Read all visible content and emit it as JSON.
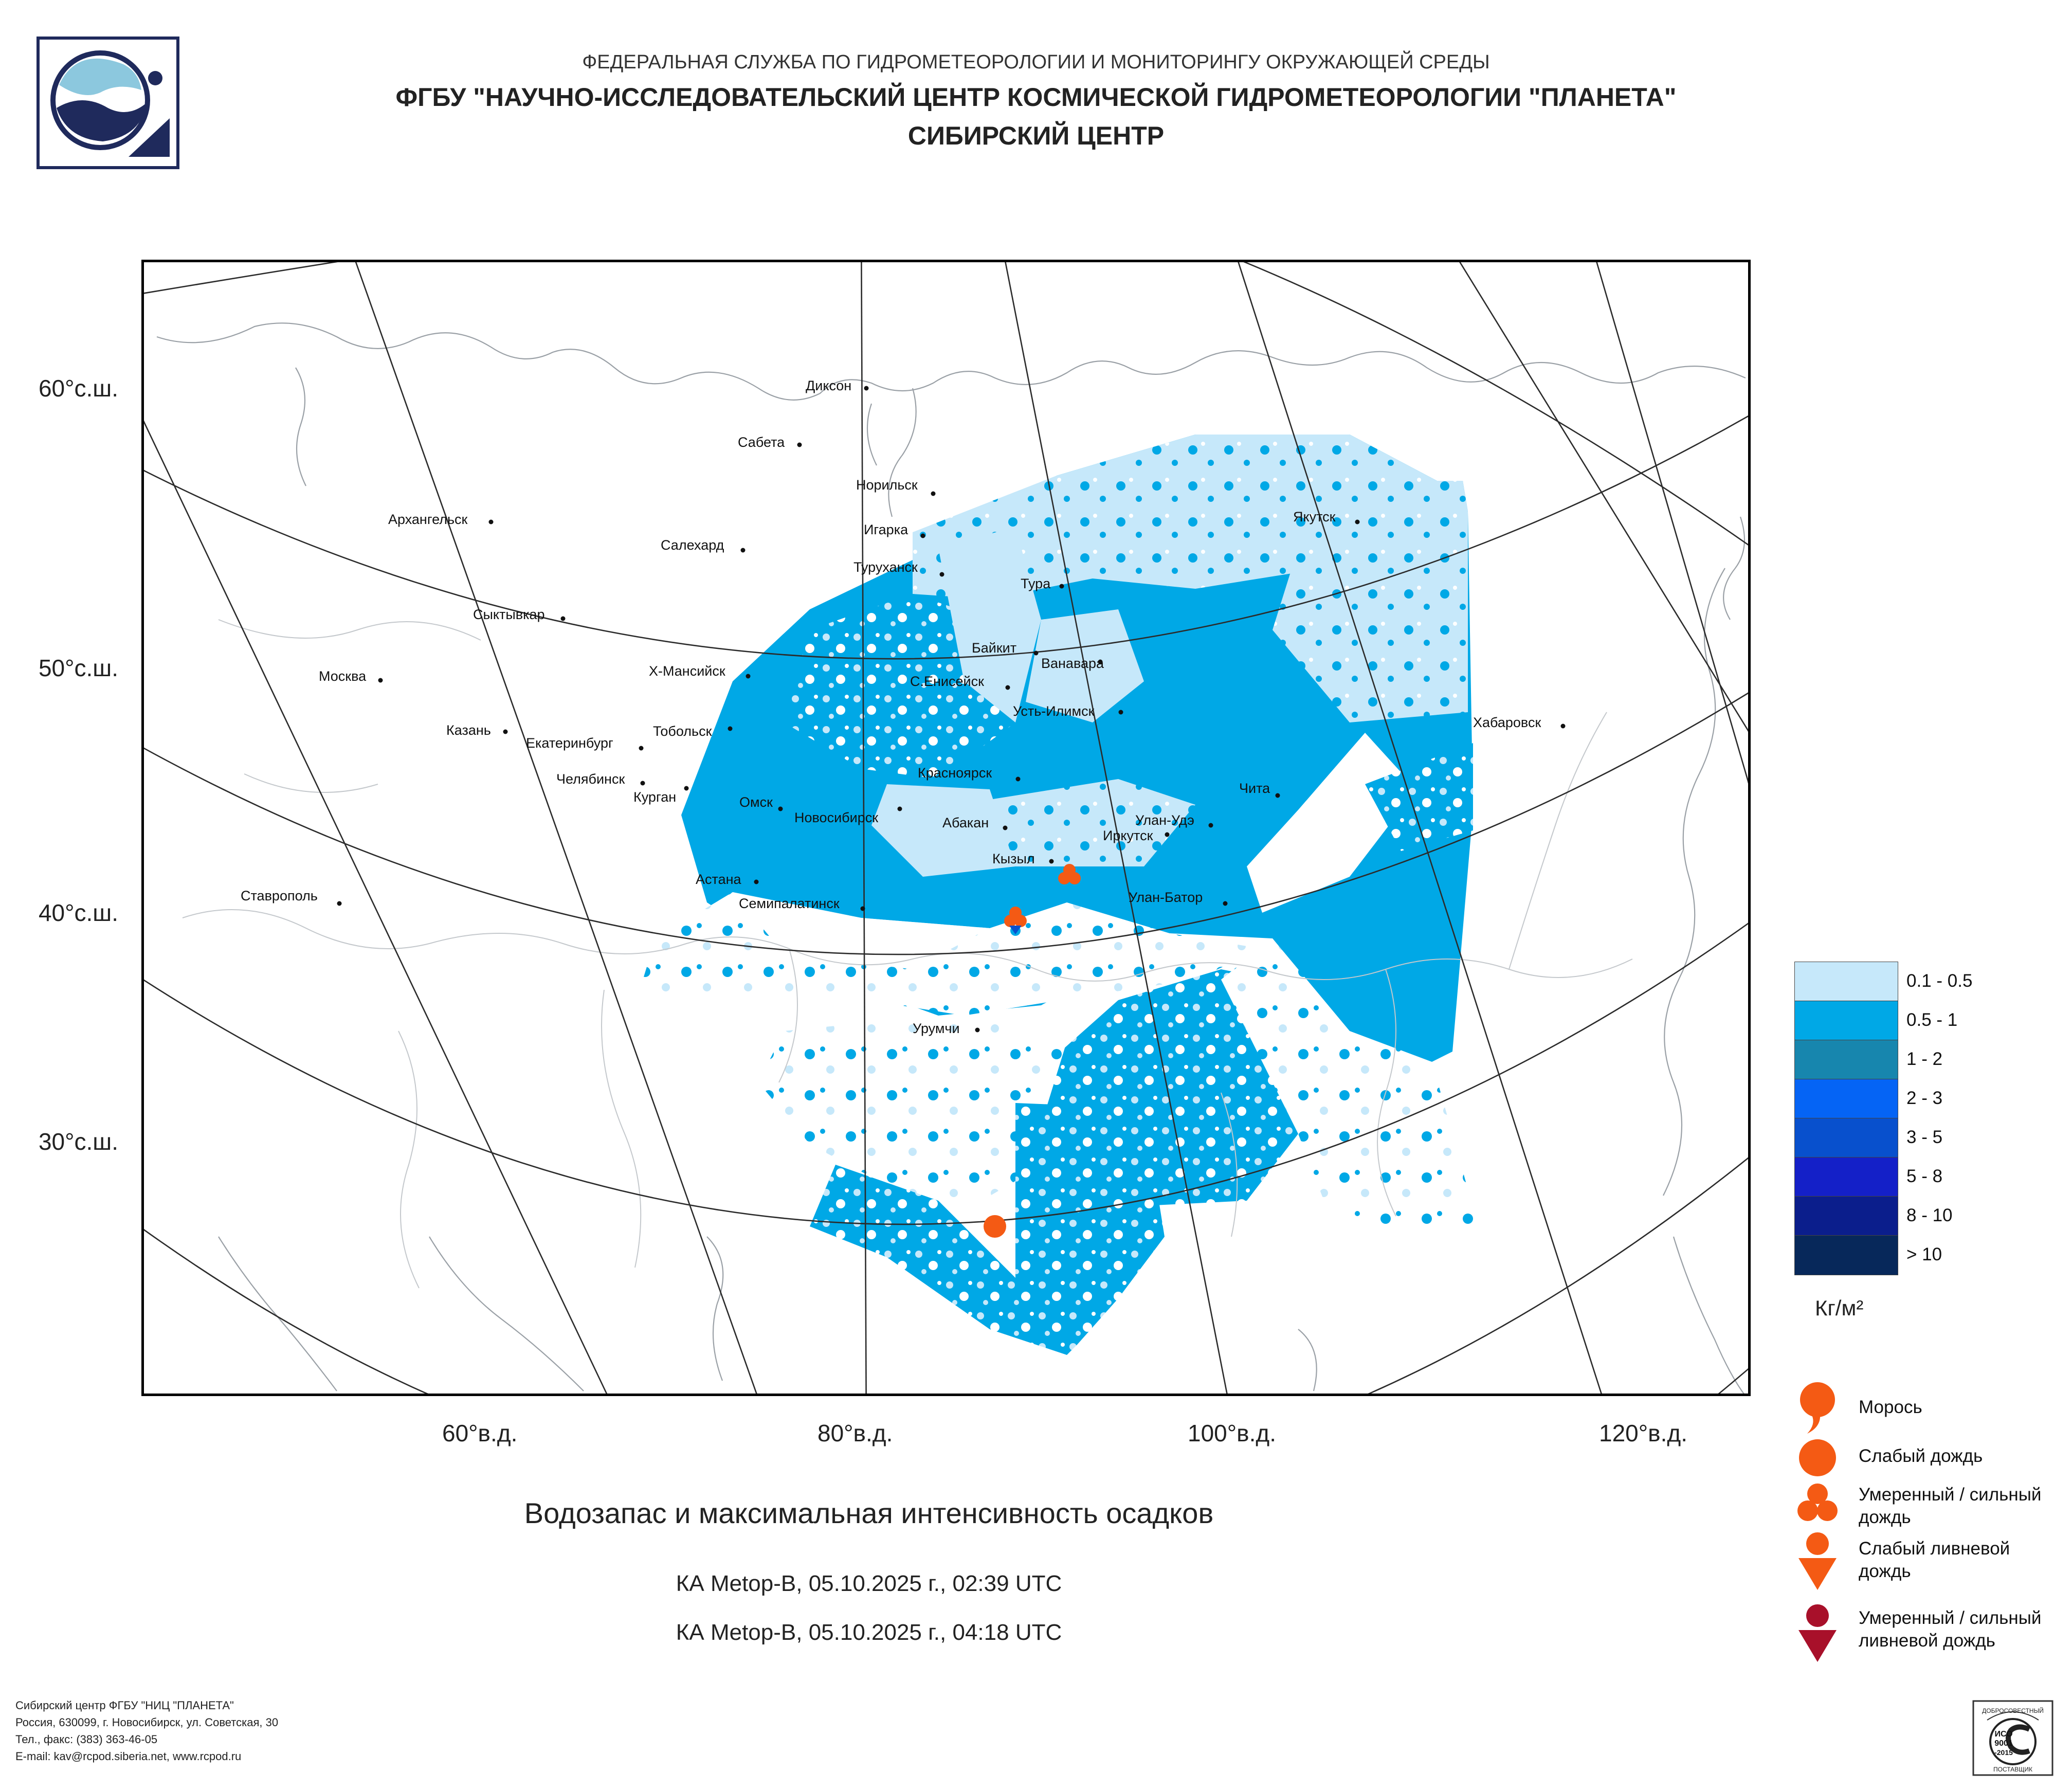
{
  "header": {
    "line1": "ФЕДЕРАЛЬНАЯ СЛУЖБА ПО ГИДРОМЕТЕОРОЛОГИИ И МОНИТОРИНГУ ОКРУЖАЮЩЕЙ СРЕДЫ",
    "line2": "ФГБУ \"НАУЧНО-ИССЛЕДОВАТЕЛЬСКИЙ ЦЕНТР КОСМИЧЕСКОЙ ГИДРОМЕТЕОРОЛОГИИ \"ПЛАНЕТА\"",
    "line3": "СИБИРСКИЙ ЦЕНТР"
  },
  "logo": {
    "icon": "planeta-logo-icon"
  },
  "map": {
    "latitude_labels": [
      "60°с.ш.",
      "50°с.ш.",
      "40°с.ш.",
      "30°с.ш."
    ],
    "longitude_labels": [
      "60°в.д.",
      "80°в.д.",
      "100°в.д.",
      "120°в.д."
    ],
    "cities": [
      "Диксон",
      "Сабета",
      "Норильск",
      "Архангельск",
      "Игарка",
      "Салехард",
      "Туруханск",
      "Якутск",
      "Тура",
      "Сыктывкар",
      "Байкит",
      "Ванавара",
      "Х-Мансийск",
      "С.Енисейск",
      "Москва",
      "Усть-Илимск",
      "Тобольск",
      "Казань",
      "Екатеринбург",
      "Хабаровск",
      "Красноярск",
      "Челябинск",
      "Курган",
      "Чита",
      "Омск",
      "Новосибирск",
      "Абакан",
      "Улан-Удэ",
      "Иркутск",
      "Кызыл",
      "Астана",
      "Ставрополь",
      "Семипалатинск",
      "Улан-Батор",
      "Урумчи"
    ]
  },
  "legend": {
    "ranges": [
      {
        "label": "0.1 - 0.5",
        "color": "#c6e8fa"
      },
      {
        "label": "0.5 - 1",
        "color": "#00a8e6"
      },
      {
        "label": "1 - 2",
        "color": "#1786ae"
      },
      {
        "label": "2 - 3",
        "color": "#0564f5"
      },
      {
        "label": "3 - 5",
        "color": "#0850cd"
      },
      {
        "label": "5 - 8",
        "color": "#1420c8"
      },
      {
        "label": "8 - 10",
        "color": "#0b1e8c"
      },
      {
        "label": "> 10",
        "color": "#07285a"
      }
    ],
    "units": "Кг/м²"
  },
  "precip_legend": [
    {
      "label": "Морось",
      "icon": "drizzle-icon"
    },
    {
      "label": "Слабый дождь",
      "icon": "light-rain-icon"
    },
    {
      "label": "Умеренный / сильный дождь",
      "icon": "moderate-rain-icon"
    },
    {
      "label": "Слабый ливневой дождь",
      "icon": "light-shower-icon"
    },
    {
      "label": "Умеренный / сильный ливневой дождь",
      "icon": "heavy-shower-icon"
    }
  ],
  "colors": {
    "rain": "#f45a14",
    "heavy_shower": "#a8102a"
  },
  "title": "Водозапас и максимальная интенсивность осадков",
  "satellite_passes": [
    "КА Metop-B, 05.10.2025 г., 02:39 UTC",
    "КА Metop-B, 05.10.2025 г., 04:18 UTC"
  ],
  "footer": {
    "line1": "Сибирский центр ФГБУ \"НИЦ \"ПЛАНЕТА\"",
    "line2": "Россия, 630099, г. Новосибирск, ул. Советская, 30",
    "line3": "Тел., факс: (383) 363-46-05",
    "line4": "E-mail: kav@rcpod.siberia.net, www.rcpod.ru"
  },
  "certificate": {
    "arc_text": "ДОБРОСОВЕСТНЫЙ",
    "line1": "ИСО",
    "line2": "9001",
    "line3": "-2015",
    "bottom_text": "ПОСТАВЩИК"
  }
}
